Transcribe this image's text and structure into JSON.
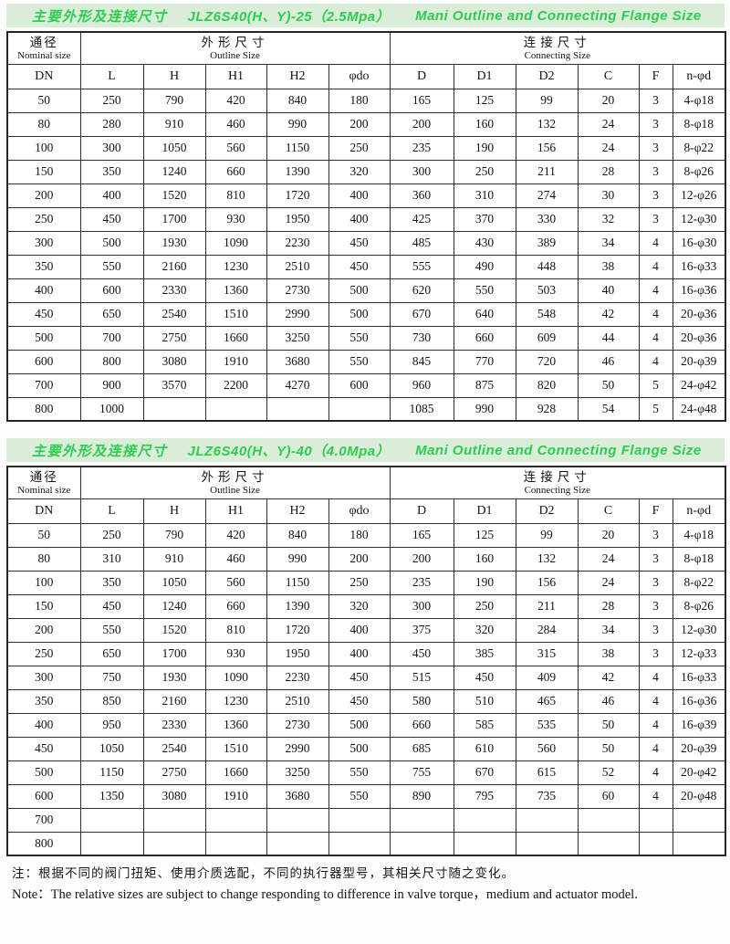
{
  "theme": {
    "title_text_color": "#2dcd4f",
    "title_bg_color": "#d9edd8",
    "border_color": "#303030",
    "table_bg": "#ffffff"
  },
  "tables": [
    {
      "title": {
        "zh": "主要外形及连接尺寸",
        "model": "JLZ6S40(H、Y)-25（2.5Mpa）",
        "en": "Mani Outline and Connecting Flange Size"
      },
      "header": {
        "nominal": {
          "zh": "通径",
          "en": "Nominal size"
        },
        "outline": {
          "zh": "外形尺寸",
          "en": "Outline Size"
        },
        "connecting": {
          "zh": "连接尺寸",
          "en": "Connecting Size"
        },
        "columns": [
          "DN",
          "L",
          "H",
          "H1",
          "H2",
          "φdo",
          "D",
          "D1",
          "D2",
          "C",
          "F",
          "n-φd"
        ]
      },
      "rows": [
        [
          "50",
          "250",
          "790",
          "420",
          "840",
          "180",
          "165",
          "125",
          "99",
          "20",
          "3",
          "4-φ18"
        ],
        [
          "80",
          "280",
          "910",
          "460",
          "990",
          "200",
          "200",
          "160",
          "132",
          "24",
          "3",
          "8-φ18"
        ],
        [
          "100",
          "300",
          "1050",
          "560",
          "1150",
          "250",
          "235",
          "190",
          "156",
          "24",
          "3",
          "8-φ22"
        ],
        [
          "150",
          "350",
          "1240",
          "660",
          "1390",
          "320",
          "300",
          "250",
          "211",
          "28",
          "3",
          "8-φ26"
        ],
        [
          "200",
          "400",
          "1520",
          "810",
          "1720",
          "400",
          "360",
          "310",
          "274",
          "30",
          "3",
          "12-φ26"
        ],
        [
          "250",
          "450",
          "1700",
          "930",
          "1950",
          "400",
          "425",
          "370",
          "330",
          "32",
          "3",
          "12-φ30"
        ],
        [
          "300",
          "500",
          "1930",
          "1090",
          "2230",
          "450",
          "485",
          "430",
          "389",
          "34",
          "4",
          "16-φ30"
        ],
        [
          "350",
          "550",
          "2160",
          "1230",
          "2510",
          "450",
          "555",
          "490",
          "448",
          "38",
          "4",
          "16-φ33"
        ],
        [
          "400",
          "600",
          "2330",
          "1360",
          "2730",
          "500",
          "620",
          "550",
          "503",
          "40",
          "4",
          "16-φ36"
        ],
        [
          "450",
          "650",
          "2540",
          "1510",
          "2990",
          "500",
          "670",
          "640",
          "548",
          "42",
          "4",
          "20-φ36"
        ],
        [
          "500",
          "700",
          "2750",
          "1660",
          "3250",
          "550",
          "730",
          "660",
          "609",
          "44",
          "4",
          "20-φ36"
        ],
        [
          "600",
          "800",
          "3080",
          "1910",
          "3680",
          "550",
          "845",
          "770",
          "720",
          "46",
          "4",
          "20-φ39"
        ],
        [
          "700",
          "900",
          "3570",
          "2200",
          "4270",
          "600",
          "960",
          "875",
          "820",
          "50",
          "5",
          "24-φ42"
        ],
        [
          "800",
          "1000",
          "",
          "",
          "",
          "",
          "1085",
          "990",
          "928",
          "54",
          "5",
          "24-φ48"
        ]
      ]
    },
    {
      "title": {
        "zh": "主要外形及连接尺寸",
        "model": "JLZ6S40(H、Y)-40（4.0Mpa）",
        "en": "Mani Outline and Connecting Flange Size"
      },
      "header": {
        "nominal": {
          "zh": "通径",
          "en": "Nominal size"
        },
        "outline": {
          "zh": "外形尺寸",
          "en": "Outline Size"
        },
        "connecting": {
          "zh": "连接尺寸",
          "en": "Connecting Size"
        },
        "columns": [
          "DN",
          "L",
          "H",
          "H1",
          "H2",
          "φdo",
          "D",
          "D1",
          "D2",
          "C",
          "F",
          "n-φd"
        ]
      },
      "rows": [
        [
          "50",
          "250",
          "790",
          "420",
          "840",
          "180",
          "165",
          "125",
          "99",
          "20",
          "3",
          "4-φ18"
        ],
        [
          "80",
          "310",
          "910",
          "460",
          "990",
          "200",
          "200",
          "160",
          "132",
          "24",
          "3",
          "8-φ18"
        ],
        [
          "100",
          "350",
          "1050",
          "560",
          "1150",
          "250",
          "235",
          "190",
          "156",
          "24",
          "3",
          "8-φ22"
        ],
        [
          "150",
          "450",
          "1240",
          "660",
          "1390",
          "320",
          "300",
          "250",
          "211",
          "28",
          "3",
          "8-φ26"
        ],
        [
          "200",
          "550",
          "1520",
          "810",
          "1720",
          "400",
          "375",
          "320",
          "284",
          "34",
          "3",
          "12-φ30"
        ],
        [
          "250",
          "650",
          "1700",
          "930",
          "1950",
          "400",
          "450",
          "385",
          "315",
          "38",
          "3",
          "12-φ33"
        ],
        [
          "300",
          "750",
          "1930",
          "1090",
          "2230",
          "450",
          "515",
          "450",
          "409",
          "42",
          "4",
          "16-φ33"
        ],
        [
          "350",
          "850",
          "2160",
          "1230",
          "2510",
          "450",
          "580",
          "510",
          "465",
          "46",
          "4",
          "16-φ36"
        ],
        [
          "400",
          "950",
          "2330",
          "1360",
          "2730",
          "500",
          "660",
          "585",
          "535",
          "50",
          "4",
          "16-φ39"
        ],
        [
          "450",
          "1050",
          "2540",
          "1510",
          "2990",
          "500",
          "685",
          "610",
          "560",
          "50",
          "4",
          "20-φ39"
        ],
        [
          "500",
          "1150",
          "2750",
          "1660",
          "3250",
          "550",
          "755",
          "670",
          "615",
          "52",
          "4",
          "20-φ42"
        ],
        [
          "600",
          "1350",
          "3080",
          "1910",
          "3680",
          "550",
          "890",
          "795",
          "735",
          "60",
          "4",
          "20-φ48"
        ],
        [
          "700",
          "",
          "",
          "",
          "",
          "",
          "",
          "",
          "",
          "",
          "",
          ""
        ],
        [
          "800",
          "",
          "",
          "",
          "",
          "",
          "",
          "",
          "",
          "",
          "",
          ""
        ]
      ]
    }
  ],
  "notes": {
    "zh": "注：根据不同的阀门扭矩、使用介质选配，不同的执行器型号，其相关尺寸随之变化。",
    "en": "Note：The relative sizes are subject to change responding to difference in valve torque，medium and actuator model."
  }
}
